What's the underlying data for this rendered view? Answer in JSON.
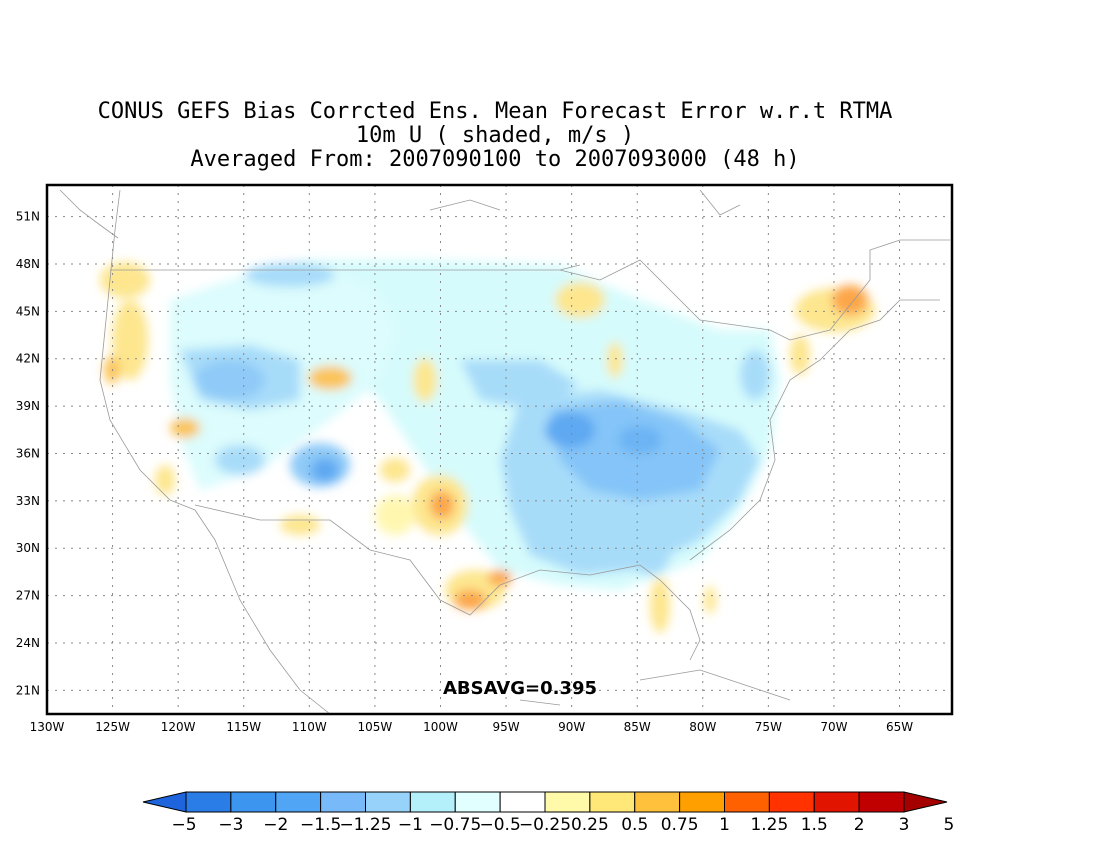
{
  "title": {
    "line1": "CONUS GEFS Bias Corrcted Ens. Mean Forecast Error w.r.t RTMA",
    "line2": "10m U ( shaded, m/s )",
    "line3": "Averaged From: 2007090100 to 2007093000 (48 h)"
  },
  "annotation": "ABSAVG=0.395",
  "axes": {
    "x_ticks": [
      "130W",
      "125W",
      "120W",
      "115W",
      "110W",
      "105W",
      "100W",
      "95W",
      "90W",
      "85W",
      "80W",
      "75W",
      "70W",
      "65W"
    ],
    "y_ticks": [
      "51N",
      "48N",
      "45N",
      "42N",
      "39N",
      "36N",
      "33N",
      "30N",
      "27N",
      "24N",
      "21N"
    ],
    "lon_range": [
      -130,
      -61
    ],
    "lat_range": [
      19.5,
      53
    ]
  },
  "colorbar": {
    "colors": [
      "#1e64dc",
      "#2a7ce6",
      "#3c96f0",
      "#50a5f5",
      "#78b9fa",
      "#96d2fa",
      "#b4f0fa",
      "#e1ffff",
      "#ffffff",
      "#fffaaa",
      "#ffe878",
      "#ffc03c",
      "#ffa000",
      "#ff6000",
      "#ff3200",
      "#e11400",
      "#c00000",
      "#a50000"
    ],
    "labels": [
      "−5",
      "−3",
      "−2",
      "−1.5",
      "−1.25",
      "−1",
      "−0.75",
      "−0.5",
      "−0.25",
      "0.25",
      "0.5",
      "0.75",
      "1",
      "1.25",
      "1.5",
      "2",
      "3",
      "5"
    ]
  }
}
